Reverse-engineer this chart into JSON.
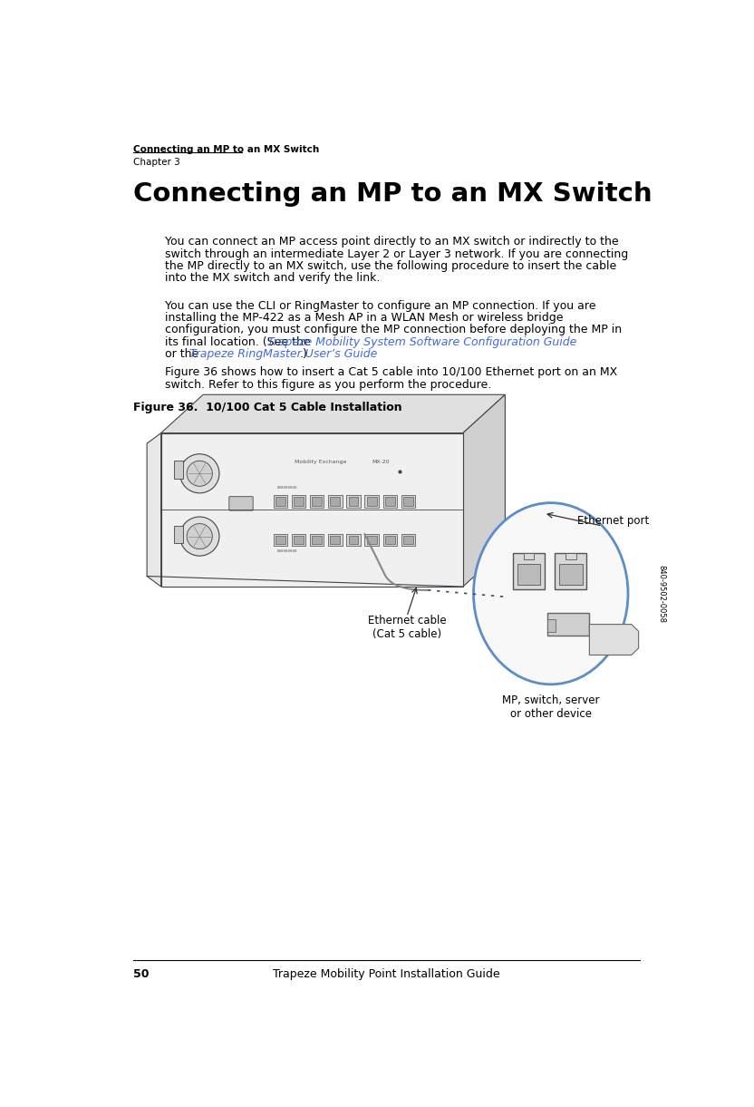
{
  "page_title_bold": "Connecting an MP to an MX Switch",
  "page_title_normal": "Chapter 3",
  "main_title": "Connecting an MP to an MX Switch",
  "p1_l1": "You can connect an MP access point directly to an MX switch or indirectly to the",
  "p1_l2": "switch through an intermediate Layer 2 or Layer 3 network. If you are connecting",
  "p1_l3": "the MP directly to an MX switch, use the following procedure to insert the cable",
  "p1_l4": "into the MX switch and verify the link.",
  "p2_l1": "You can use the CLI or RingMaster to configure an MP connection. If you are",
  "p2_l2": "installing the MP-422 as a Mesh AP in a WLAN Mesh or wireless bridge",
  "p2_l3": "configuration, you must configure the MP connection before deploying the MP in",
  "p2_l4a": "its final location. (See the ",
  "p2_l4b": "Trapeze Mobility System Software Configuration Guide",
  "p2_l5a": "or the ",
  "p2_l5b": "Trapeze RingMaster User’s Guide",
  "p2_l5c": ".)",
  "p3_l1": "Figure 36 shows how to insert a Cat 5 cable into 10/100 Ethernet port on an MX",
  "p3_l2": "switch. Refer to this figure as you perform the procedure.",
  "fig_caption": "Figure 36.  10/100 Cat 5 Cable Installation",
  "label_ethernet_port": "Ethernet port",
  "label_ethernet_cable": "Ethernet cable\n(Cat 5 cable)",
  "label_mp_device": "MP, switch, server\nor other device",
  "label_part_number": "840-9502-0058",
  "footer_page": "50",
  "footer_text": "Trapeze Mobility Point Installation Guide",
  "bg_color": "#ffffff",
  "text_color": "#000000",
  "link_color": "#4169E1",
  "line_color": "#000000",
  "switch_edge_color": "#444444",
  "switch_face_color": "#f0f0f0",
  "switch_top_color": "#e0e0e0",
  "switch_side_color": "#d0d0d0",
  "circle_color": "#5b8dc8",
  "rj45_body_color": "#d8d8d8",
  "rj45_port_color": "#b0b0b0",
  "cable_color": "#d8d8d8",
  "dot_line_color": "#444466"
}
